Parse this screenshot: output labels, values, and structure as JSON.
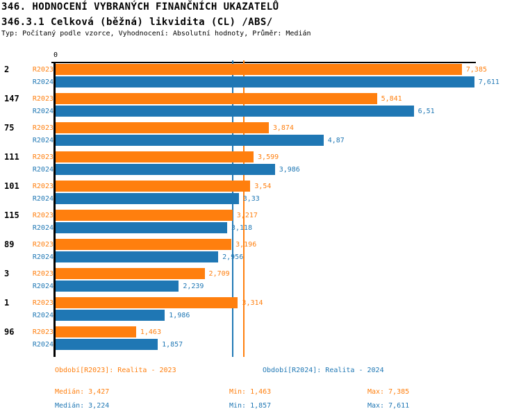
{
  "header": {
    "title1": "346. HODNOCENÍ VYBRANÝCH FINANČNÍCH UKAZATELŮ",
    "title2": "346.3.1 Celková (běžná) likvidita (CL) /ABS/",
    "meta": "Typ: Počítaný podle vzorce, Vyhodnocení: Absolutní hodnoty, Průměr: Medián"
  },
  "colors": {
    "r2023": "#ff7f0e",
    "r2024": "#1f77b4",
    "axis": "#000000"
  },
  "chart_data": {
    "type": "bar",
    "orientation": "horizontal",
    "origin_tick_label": "0",
    "xlim": [
      0,
      7.65
    ],
    "categories": [
      "2",
      "147",
      "75",
      "111",
      "101",
      "115",
      "89",
      "3",
      "1",
      "96"
    ],
    "series": [
      {
        "name": "R2023",
        "color": "#ff7f0e",
        "values": [
          7.385,
          5.841,
          3.874,
          3.599,
          3.54,
          3.217,
          3.196,
          2.709,
          3.314,
          1.463
        ],
        "labels": [
          "7,385",
          "5,841",
          "3,874",
          "3,599",
          "3,54",
          "3,217",
          "3,196",
          "2,709",
          "3,314",
          "1,463"
        ]
      },
      {
        "name": "R2024",
        "color": "#1f77b4",
        "values": [
          7.611,
          6.51,
          4.87,
          3.986,
          3.33,
          3.118,
          2.956,
          2.239,
          1.986,
          1.857
        ],
        "labels": [
          "7,611",
          "6,51",
          "4,87",
          "3,986",
          "3,33",
          "3,118",
          "2,956",
          "2,239",
          "1,986",
          "1,857"
        ]
      }
    ],
    "median_lines": [
      {
        "series": "R2023",
        "value": 3.427,
        "color": "#ff7f0e"
      },
      {
        "series": "R2024",
        "value": 3.224,
        "color": "#1f77b4"
      }
    ]
  },
  "footer": {
    "legend_r2023": "Období[R2023]: Realita - 2023",
    "legend_r2024": "Období[R2024]: Realita - 2024",
    "stats_r2023": {
      "median": "Medián: 3,427",
      "min": "Min: 1,463",
      "max": "Max: 7,385"
    },
    "stats_r2024": {
      "median": "Medián: 3,224",
      "min": "Min: 1,857",
      "max": "Max: 7,611"
    }
  }
}
